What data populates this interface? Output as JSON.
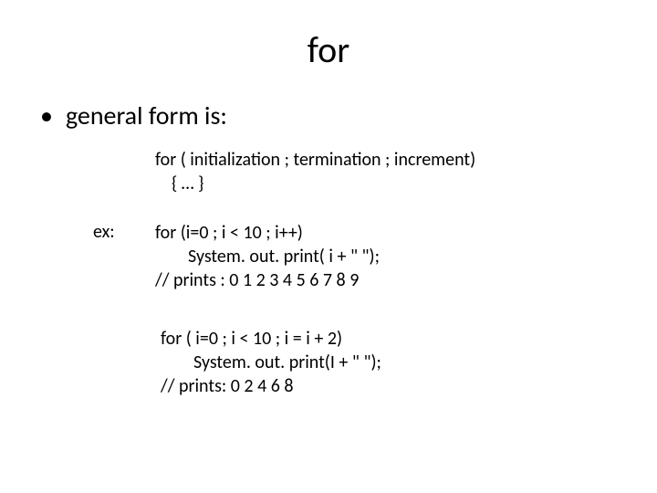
{
  "title": "for",
  "bullet": "general form is:",
  "syntax": {
    "line1": "for ( initialization ; termination ; increment)",
    "line2": "{   …   }"
  },
  "ex_label": "ex:",
  "example1": {
    "line1": "for (i=0 ; i < 10 ; i++)",
    "line2": "System. out. print( i + \" \");",
    "line3": "// prints :  0 1 2 3 4 5 6 7 8 9"
  },
  "example2": {
    "line1": "for ( i=0 ; i < 10 ; i = i + 2)",
    "line2": "System. out. print(I + \" \");",
    "line3": "// prints: 0 2 4 6 8"
  }
}
